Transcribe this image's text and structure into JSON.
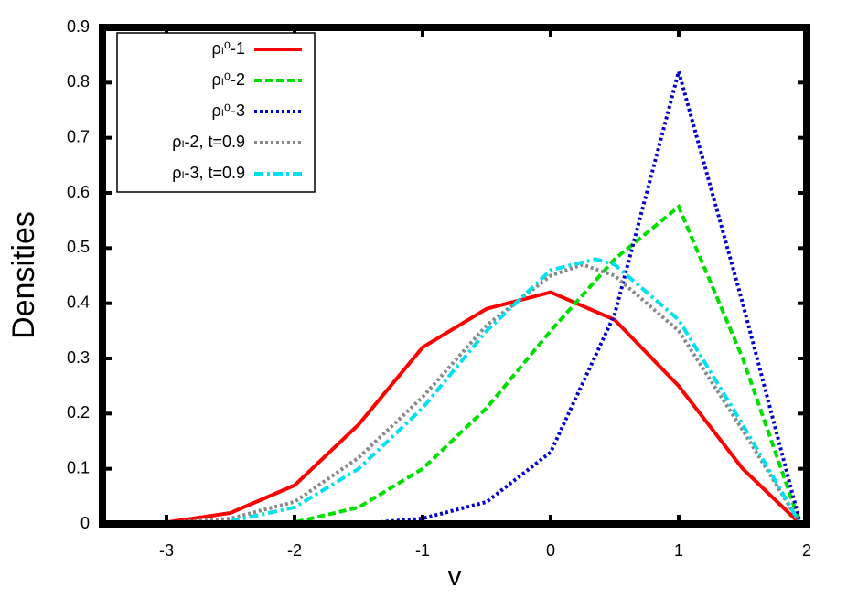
{
  "chart_data": {
    "type": "line",
    "xlabel": "v",
    "ylabel": "Densities",
    "xlim": [
      -3.5,
      2
    ],
    "ylim": [
      0,
      0.9
    ],
    "xticks": [
      -3,
      -2,
      -1,
      0,
      1,
      2
    ],
    "yticks": [
      0,
      0.1,
      0.2,
      0.3,
      0.4,
      0.5,
      0.6,
      0.7,
      0.8,
      0.9
    ],
    "legend": "top-left",
    "series": [
      {
        "name": "ρₗ⁰-1",
        "color": "#ff0000",
        "dash": "solid",
        "x": [
          -3.5,
          -3,
          -2.5,
          -2,
          -1.5,
          -1,
          -0.5,
          0,
          0.5,
          1,
          1.5,
          1.95
        ],
        "values": [
          0,
          0.003,
          0.02,
          0.07,
          0.18,
          0.32,
          0.39,
          0.42,
          0.37,
          0.25,
          0.1,
          0
        ]
      },
      {
        "name": "ρₗ⁰-2",
        "color": "#00dd00",
        "dash": "dashed",
        "x": [
          -2.5,
          -2,
          -1.5,
          -1,
          -0.5,
          0,
          0.5,
          1,
          1.5,
          1.95
        ],
        "values": [
          0,
          0.003,
          0.03,
          0.1,
          0.21,
          0.35,
          0.48,
          0.575,
          0.3,
          0
        ]
      },
      {
        "name": "ρₗ⁰-3",
        "color": "#0000cc",
        "dash": "dotted",
        "x": [
          -1.5,
          -1,
          -0.5,
          0,
          0.5,
          1,
          1.5,
          1.95
        ],
        "values": [
          0,
          0.01,
          0.04,
          0.13,
          0.38,
          0.82,
          0.4,
          0
        ]
      },
      {
        "name": "ρₗ-2, t=0.9",
        "color": "#888888",
        "dash": "dotted",
        "x": [
          -3,
          -2.5,
          -2,
          -1.5,
          -1,
          -0.5,
          0,
          0.25,
          0.5,
          1,
          1.5,
          1.95
        ],
        "values": [
          0.002,
          0.01,
          0.04,
          0.12,
          0.23,
          0.36,
          0.45,
          0.47,
          0.45,
          0.35,
          0.17,
          0
        ]
      },
      {
        "name": "ρₗ-3, t=0.9",
        "color": "#00e0ee",
        "dash": "dashdot",
        "x": [
          -2.5,
          -2,
          -1.5,
          -1,
          -0.5,
          0,
          0.35,
          0.5,
          1,
          1.5,
          1.95
        ],
        "values": [
          0.005,
          0.03,
          0.1,
          0.21,
          0.35,
          0.46,
          0.48,
          0.47,
          0.37,
          0.18,
          0
        ]
      }
    ]
  }
}
